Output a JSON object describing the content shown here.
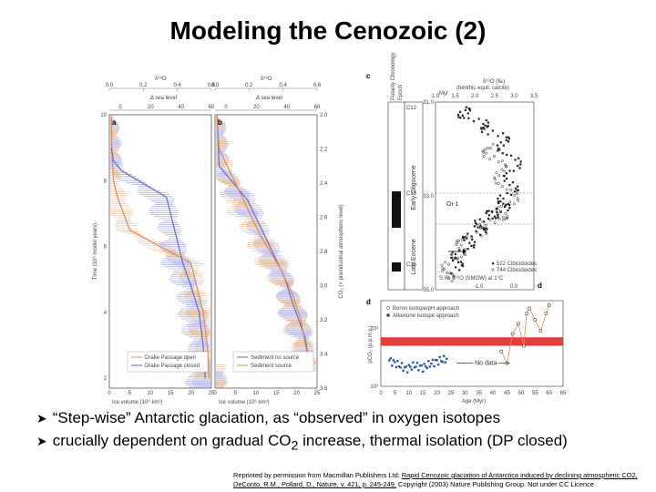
{
  "slide": {
    "title": "Modeling the Cenozoic (2)",
    "bullets": [
      {
        "pre": "“Step-wise” Antarctic glaciation, as “observed” in oxygen isotopes",
        "sub": "",
        "post": ""
      },
      {
        "pre": "crucially dependent on gradual CO",
        "sub": "2",
        "post": " increase, thermal isolation (DP closed)"
      }
    ],
    "credit": {
      "lead": "Reprinted by permission from Macmillan Publishers Ltd: ",
      "link": "Rapid Cenozoic glaciation of Antarctica induced by declining atmospheric CO2, DeConto, R.M., Pollard, D., Nature, v. 421, p. 245-249,",
      "tail": " Copyright (2003) Nature Publishing Group. Not under CC Licence"
    }
  },
  "colors": {
    "blue": "#7b7bd4",
    "orange": "#e0a070",
    "red": "#d83030",
    "dark": "#333333"
  },
  "chart_data": [
    {
      "type": "line",
      "panel": "a",
      "top_axis_1": {
        "label": "δ¹⁸O",
        "ticks": [
          "0.0",
          "0.2",
          "0.4",
          "0.6"
        ]
      },
      "top_axis_2": {
        "label": "Δ sea level",
        "ticks": [
          "0",
          "20",
          "40",
          "60"
        ]
      },
      "ylabel": "Time (10⁶ model years)",
      "yticks": [
        "10",
        "8",
        "6",
        "4",
        "2"
      ],
      "ylim": [
        1.7,
        10
      ],
      "xlabel": "Ice volume (10⁶ km³)",
      "xticks": [
        "0",
        "5",
        "10",
        "15",
        "20",
        "25"
      ],
      "xlim": [
        0,
        25
      ],
      "series": [
        {
          "name": "Drake Passage open",
          "x": [
            0.5,
            0.6,
            0.8,
            1.0,
            2,
            5,
            20,
            23,
            24,
            24.5
          ],
          "y": [
            10,
            9,
            8.5,
            8,
            7.5,
            6.5,
            5.5,
            4,
            3,
            2
          ]
        },
        {
          "name": "Drake Passage closed",
          "x": [
            0.5,
            1,
            3,
            14,
            16,
            18,
            20,
            22,
            23,
            23.5
          ],
          "y": [
            9,
            8.6,
            8.3,
            7.5,
            6.5,
            5.5,
            4.8,
            4,
            3,
            2
          ]
        }
      ],
      "legend": "bottom-right"
    },
    {
      "type": "line",
      "panel": "b",
      "top_axis_1": {
        "label": "δ¹⁸O",
        "ticks": [
          "0.0",
          "0.2",
          "0.4",
          "0.6"
        ]
      },
      "top_axis_2": {
        "label": "Δ sea level",
        "ticks": [
          "0",
          "20",
          "40",
          "60"
        ]
      },
      "ylabel": "CO₂ (× preindustrial atmospheric level)",
      "yticks": [
        "2.0",
        "2.2",
        "2.4",
        "2.6",
        "2.8",
        "3.0",
        "3.2",
        "3.4",
        "3.6"
      ],
      "ylim": [
        2.0,
        3.6
      ],
      "xlabel": "Ice volume (10⁶ km³)",
      "xticks": [
        "0",
        "5",
        "10",
        "15",
        "20",
        "25"
      ],
      "xlim": [
        0,
        25
      ],
      "series": [
        {
          "name": "Sediment no source",
          "x": [
            0.5,
            1,
            8,
            12,
            14,
            17,
            19,
            22,
            23.5
          ],
          "y": [
            2.0,
            2.3,
            2.5,
            2.7,
            2.8,
            2.95,
            3.1,
            3.3,
            3.5
          ]
        },
        {
          "name": "Sediment source",
          "x": [
            0.5,
            1,
            6,
            9,
            11,
            16,
            19,
            21,
            23
          ],
          "y": [
            2.0,
            2.2,
            2.45,
            2.6,
            2.7,
            2.9,
            3.05,
            3.2,
            3.45
          ]
        }
      ],
      "legend": "bottom-right"
    },
    {
      "type": "scatter",
      "panel": "c",
      "top_label": "δ¹⁸O (‰)",
      "top_sublabel": "(benthic equil. calcite)",
      "top_ticks": [
        "1.0",
        "1.5",
        "2.0",
        "2.5",
        "3.0",
        "3.5"
      ],
      "left_columns": [
        "Polarity Chronology",
        "Epoch"
      ],
      "epochs": [
        "Early Oligocene",
        "Late Eocene"
      ],
      "yticks_myr": [
        "31.0",
        "33.0",
        "35.0"
      ],
      "y_unit": "Myr",
      "chron_labels": [
        "C12",
        "C13",
        "C15"
      ],
      "annotations": [
        "Oi-1",
        "Ice",
        "S.W. δ¹⁸O (SMOW) at 1°C",
        "-1.0",
        "0.0"
      ],
      "legend": [
        "522 Cibicidoides",
        "744 Cibicidoides"
      ],
      "legend_placement": "bottom-right",
      "series": [
        {
          "name": "522 Cibicidoides",
          "x": [
            1.4,
            1.6,
            1.8,
            2.0,
            2.2,
            2.4,
            2.6,
            2.8,
            2.9,
            3.0,
            2.8,
            2.6,
            2.2,
            1.8,
            1.6
          ],
          "y": [
            34.6,
            34.3,
            34.0,
            33.8,
            33.6,
            33.4,
            33.3,
            33.1,
            32.8,
            32.4,
            32.0,
            31.7,
            31.5,
            31.3,
            31.1
          ]
        },
        {
          "name": "744 Cibicidoides",
          "x": [
            1.2,
            1.4,
            1.6,
            2.0,
            2.4,
            2.7,
            2.9,
            2.7,
            2.5,
            2.3
          ],
          "y": [
            34.8,
            34.5,
            34.1,
            33.8,
            33.6,
            33.4,
            33.1,
            32.6,
            32.2,
            31.9
          ]
        }
      ]
    },
    {
      "type": "scatter",
      "panel": "d",
      "ylabel": "pCO₂ (p.p.m.v.)",
      "yticks": [
        "10³",
        "10²"
      ],
      "xlabel": "Age (Myr)",
      "xticks": [
        "0",
        "5",
        "10",
        "15",
        "20",
        "25",
        "30",
        "35",
        "40",
        "45",
        "50",
        "55",
        "60",
        "65"
      ],
      "xlim": [
        0,
        65
      ],
      "annotations": [
        "No data"
      ],
      "band": {
        "label": "",
        "y_low": 500,
        "y_high": 700
      },
      "legend": [
        "Boron isotope/pH approach",
        "Alkenone isotope approach"
      ],
      "legend_placement": "top-left",
      "series": [
        {
          "name": "Boron isotope/pH approach",
          "x": [
            43,
            45,
            47,
            49,
            51,
            52,
            53,
            55,
            57,
            59,
            60
          ],
          "y": [
            400,
            250,
            800,
            1200,
            500,
            1800,
            2200,
            1400,
            900,
            1800,
            2500
          ]
        },
        {
          "name": "Alkenone isotope approach",
          "x": [
            3,
            6,
            9,
            12,
            15,
            18,
            21,
            24
          ],
          "y": [
            280,
            240,
            200,
            230,
            210,
            250,
            280,
            300
          ]
        }
      ]
    }
  ]
}
